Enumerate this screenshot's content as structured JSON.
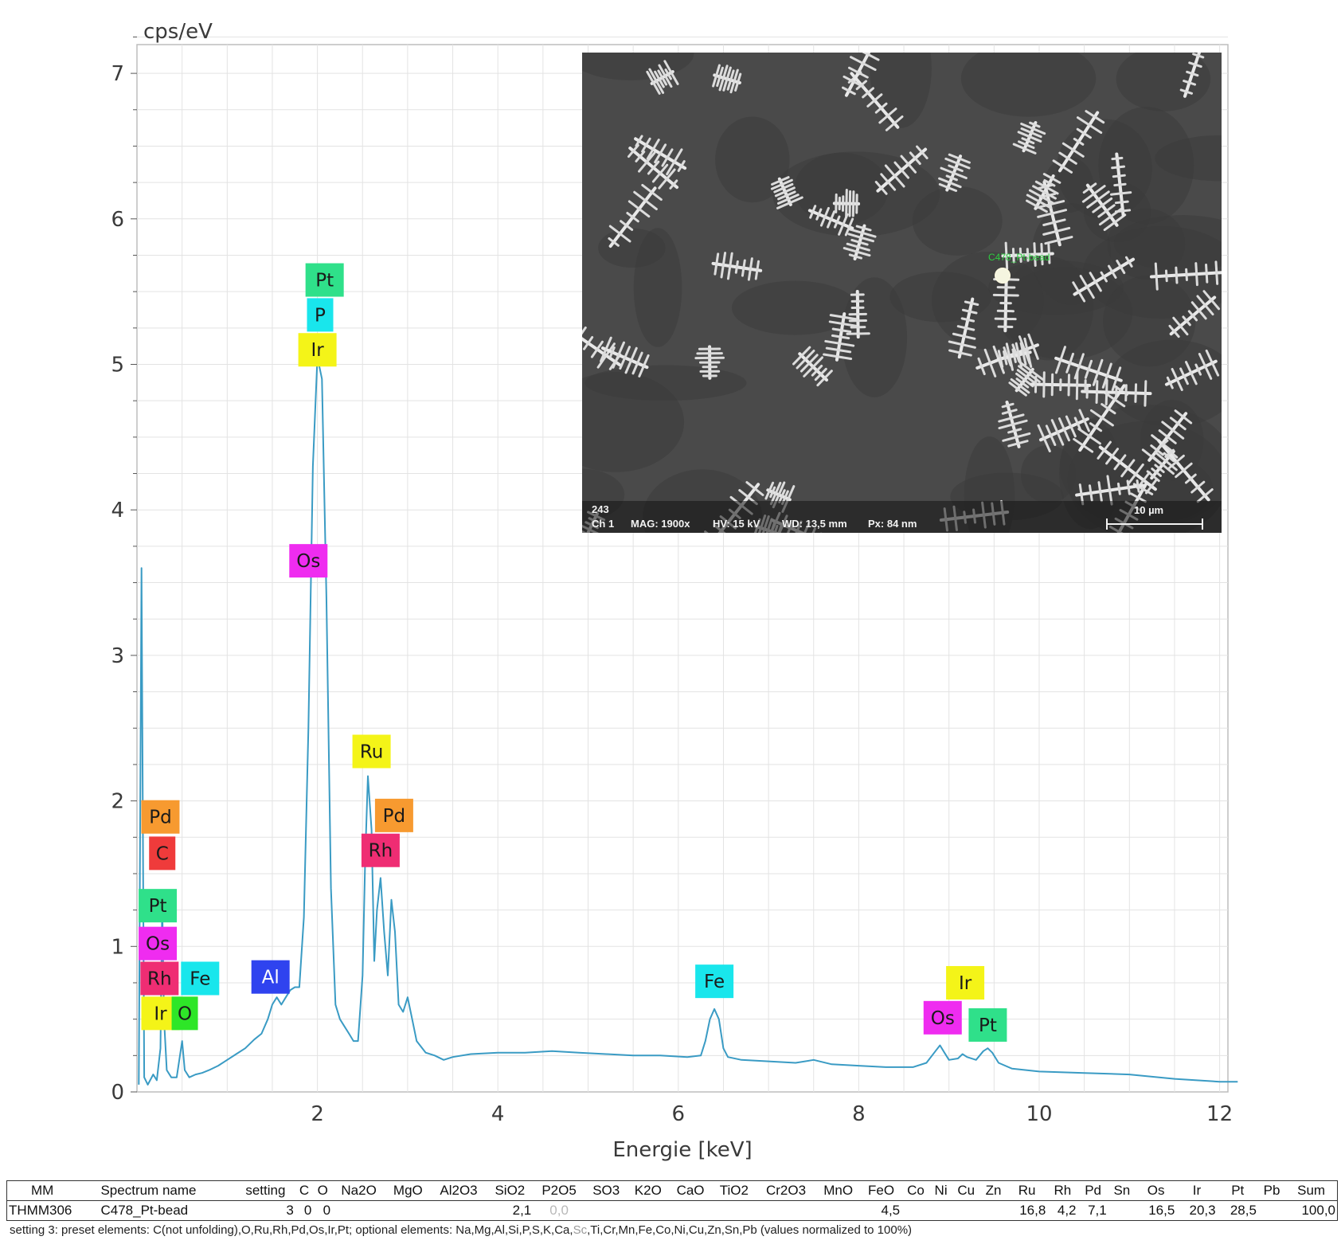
{
  "chart_data": {
    "type": "line",
    "xlabel": "Energie [keV]",
    "ylabel": "cps/eV",
    "xlim": [
      0,
      12.2
    ],
    "ylim": [
      0,
      7.3
    ],
    "x_ticks": [
      2,
      4,
      6,
      8,
      10,
      12
    ],
    "y_ticks": [
      0,
      1,
      2,
      3,
      4,
      5,
      6,
      7
    ],
    "grid": true,
    "series": [
      {
        "color": "#3a9bc4",
        "points": [
          [
            0.02,
            0.05
          ],
          [
            0.05,
            3.6
          ],
          [
            0.08,
            0.1
          ],
          [
            0.12,
            0.05
          ],
          [
            0.18,
            0.12
          ],
          [
            0.22,
            0.08
          ],
          [
            0.26,
            0.3
          ],
          [
            0.28,
            1.3
          ],
          [
            0.3,
            0.5
          ],
          [
            0.33,
            0.15
          ],
          [
            0.38,
            0.1
          ],
          [
            0.44,
            0.1
          ],
          [
            0.5,
            0.35
          ],
          [
            0.53,
            0.15
          ],
          [
            0.58,
            0.1
          ],
          [
            0.65,
            0.12
          ],
          [
            0.72,
            0.13
          ],
          [
            0.8,
            0.15
          ],
          [
            0.9,
            0.18
          ],
          [
            1.0,
            0.22
          ],
          [
            1.1,
            0.26
          ],
          [
            1.2,
            0.3
          ],
          [
            1.3,
            0.36
          ],
          [
            1.38,
            0.4
          ],
          [
            1.45,
            0.5
          ],
          [
            1.5,
            0.6
          ],
          [
            1.55,
            0.65
          ],
          [
            1.6,
            0.6
          ],
          [
            1.65,
            0.65
          ],
          [
            1.7,
            0.7
          ],
          [
            1.75,
            0.72
          ],
          [
            1.8,
            0.72
          ],
          [
            1.85,
            1.2
          ],
          [
            1.9,
            2.5
          ],
          [
            1.95,
            4.3
          ],
          [
            2.0,
            5.05
          ],
          [
            2.05,
            4.9
          ],
          [
            2.1,
            3.4
          ],
          [
            2.15,
            1.4
          ],
          [
            2.2,
            0.6
          ],
          [
            2.25,
            0.5
          ],
          [
            2.3,
            0.45
          ],
          [
            2.35,
            0.4
          ],
          [
            2.4,
            0.35
          ],
          [
            2.45,
            0.35
          ],
          [
            2.5,
            0.8
          ],
          [
            2.53,
            1.6
          ],
          [
            2.56,
            2.17
          ],
          [
            2.6,
            1.8
          ],
          [
            2.63,
            0.9
          ],
          [
            2.66,
            1.25
          ],
          [
            2.7,
            1.47
          ],
          [
            2.74,
            1.1
          ],
          [
            2.78,
            0.8
          ],
          [
            2.82,
            1.32
          ],
          [
            2.86,
            1.1
          ],
          [
            2.9,
            0.6
          ],
          [
            2.95,
            0.55
          ],
          [
            3.0,
            0.65
          ],
          [
            3.05,
            0.5
          ],
          [
            3.1,
            0.35
          ],
          [
            3.2,
            0.27
          ],
          [
            3.3,
            0.25
          ],
          [
            3.4,
            0.22
          ],
          [
            3.5,
            0.24
          ],
          [
            3.7,
            0.26
          ],
          [
            4.0,
            0.27
          ],
          [
            4.3,
            0.27
          ],
          [
            4.6,
            0.28
          ],
          [
            4.9,
            0.27
          ],
          [
            5.2,
            0.26
          ],
          [
            5.5,
            0.25
          ],
          [
            5.8,
            0.25
          ],
          [
            6.1,
            0.24
          ],
          [
            6.25,
            0.25
          ],
          [
            6.3,
            0.35
          ],
          [
            6.35,
            0.5
          ],
          [
            6.4,
            0.57
          ],
          [
            6.45,
            0.5
          ],
          [
            6.5,
            0.3
          ],
          [
            6.55,
            0.24
          ],
          [
            6.7,
            0.22
          ],
          [
            7.0,
            0.21
          ],
          [
            7.3,
            0.2
          ],
          [
            7.5,
            0.22
          ],
          [
            7.7,
            0.19
          ],
          [
            8.0,
            0.18
          ],
          [
            8.3,
            0.17
          ],
          [
            8.6,
            0.17
          ],
          [
            8.75,
            0.2
          ],
          [
            8.85,
            0.28
          ],
          [
            8.9,
            0.32
          ],
          [
            8.95,
            0.27
          ],
          [
            9.0,
            0.22
          ],
          [
            9.1,
            0.23
          ],
          [
            9.15,
            0.26
          ],
          [
            9.2,
            0.24
          ],
          [
            9.3,
            0.22
          ],
          [
            9.38,
            0.28
          ],
          [
            9.43,
            0.3
          ],
          [
            9.48,
            0.27
          ],
          [
            9.55,
            0.2
          ],
          [
            9.7,
            0.16
          ],
          [
            10.0,
            0.14
          ],
          [
            10.5,
            0.13
          ],
          [
            11.0,
            0.12
          ],
          [
            11.5,
            0.09
          ],
          [
            12.0,
            0.07
          ],
          [
            12.2,
            0.07
          ]
        ]
      }
    ],
    "peak_labels": [
      {
        "text": "Pt",
        "x": 2.08,
        "y": 5.58,
        "bg": "#2fe08a",
        "fg": "#1a1a1a"
      },
      {
        "text": "P",
        "x": 2.03,
        "y": 5.34,
        "bg": "#19e6ec",
        "fg": "#1a1a1a"
      },
      {
        "text": "Ir",
        "x": 2.0,
        "y": 5.1,
        "bg": "#f4f418",
        "fg": "#1a1a1a"
      },
      {
        "text": "Os",
        "x": 1.9,
        "y": 3.65,
        "bg": "#ef2cf0",
        "fg": "#1a1a1a"
      },
      {
        "text": "Ru",
        "x": 2.6,
        "y": 2.34,
        "bg": "#f4f418",
        "fg": "#1a1a1a"
      },
      {
        "text": "Pd",
        "x": 2.85,
        "y": 1.9,
        "bg": "#f79a30",
        "fg": "#1a1a1a"
      },
      {
        "text": "Rh",
        "x": 2.7,
        "y": 1.66,
        "bg": "#ef2d73",
        "fg": "#1a1a1a"
      },
      {
        "text": "Pd",
        "x": 0.26,
        "y": 1.89,
        "bg": "#f79a30",
        "fg": "#1a1a1a"
      },
      {
        "text": "C",
        "x": 0.28,
        "y": 1.64,
        "bg": "#ef3b3b",
        "fg": "#1a1a1a"
      },
      {
        "text": "Pt",
        "x": 0.23,
        "y": 1.28,
        "bg": "#2fe08a",
        "fg": "#1a1a1a"
      },
      {
        "text": "Os",
        "x": 0.23,
        "y": 1.02,
        "bg": "#ef2cf0",
        "fg": "#1a1a1a"
      },
      {
        "text": "Rh",
        "x": 0.25,
        "y": 0.78,
        "bg": "#ef2d73",
        "fg": "#1a1a1a"
      },
      {
        "text": "Fe",
        "x": 0.7,
        "y": 0.78,
        "bg": "#19e6ec",
        "fg": "#1a1a1a"
      },
      {
        "text": "Ir",
        "x": 0.26,
        "y": 0.54,
        "bg": "#f4f418",
        "fg": "#1a1a1a"
      },
      {
        "text": "O",
        "x": 0.53,
        "y": 0.54,
        "bg": "#2ee628",
        "fg": "#1a1a1a"
      },
      {
        "text": "Al",
        "x": 1.48,
        "y": 0.79,
        "bg": "#2f43ef",
        "fg": "#ffffff"
      },
      {
        "text": "Fe",
        "x": 6.4,
        "y": 0.76,
        "bg": "#19e6ec",
        "fg": "#1a1a1a"
      },
      {
        "text": "Ir",
        "x": 9.18,
        "y": 0.75,
        "bg": "#f4f418",
        "fg": "#1a1a1a"
      },
      {
        "text": "Os",
        "x": 8.93,
        "y": 0.51,
        "bg": "#ef2cf0",
        "fg": "#1a1a1a"
      },
      {
        "text": "Pt",
        "x": 9.43,
        "y": 0.46,
        "bg": "#2fe08a",
        "fg": "#1a1a1a"
      }
    ]
  },
  "inset": {
    "image_number": "243",
    "channel": "Ch 1",
    "mag": "MAG: 1900x",
    "hv": "HV: 15 kV",
    "wd": "WD: 13,5 mm",
    "px": "Px: 84 nm",
    "scale_bar": "10 µm",
    "spot_label": "C478_Pt-bead"
  },
  "table": {
    "headers": [
      "MM",
      "Spectrum name",
      "setting",
      "C",
      "O",
      "Na2O",
      "MgO",
      "Al2O3",
      "SiO2",
      "P2O5",
      "SO3",
      "K2O",
      "CaO",
      "TiO2",
      "Cr2O3",
      "MnO",
      "FeO",
      "Co",
      "Ni",
      "Cu",
      "Zn",
      "Ru",
      "Rh",
      "Pd",
      "Sn",
      "Os",
      "Ir",
      "Pt",
      "Pb",
      "Sum"
    ],
    "row": [
      "THMM306",
      "C478_Pt-bead",
      "3",
      "0",
      "0",
      "",
      "",
      "",
      "2,1",
      "0,0",
      "",
      "",
      "",
      "",
      "",
      "",
      "4,5",
      "",
      "",
      "",
      "",
      "16,8",
      "4,2",
      "7,1",
      "",
      "16,5",
      "20,3",
      "28,5",
      "",
      "100,0"
    ]
  },
  "footnote_parts": [
    "setting 3: preset elements: C(not unfolding),O,Ru,Rh,Pd,Os,Ir,Pt; optional elements: Na,Mg,Al,Si,P,S,K,Ca,",
    "Sc",
    ",Ti,Cr,Mn,Fe,Co,Ni,Cu,Zn,Sn,Pb (values normalized to 100%)"
  ]
}
